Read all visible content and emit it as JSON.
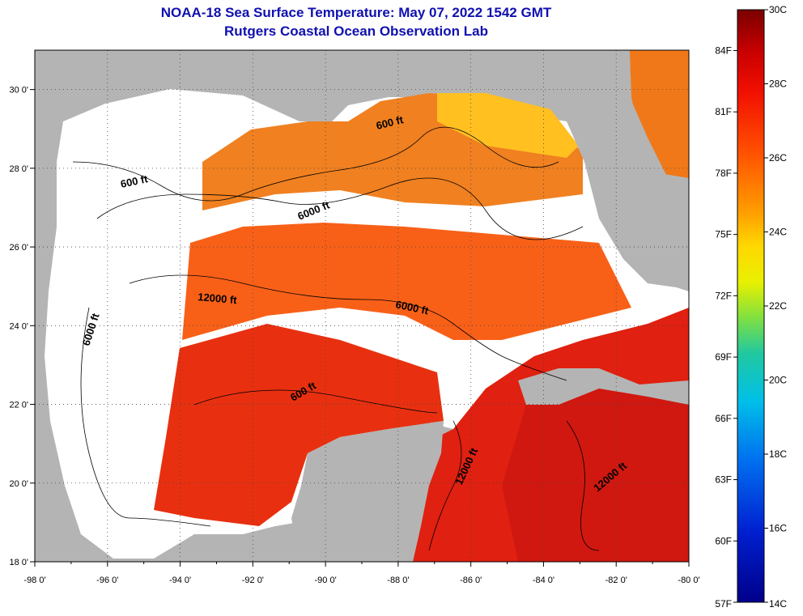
{
  "title": {
    "line1": "NOAA-18 Sea Surface Temperature:  May 07, 2022 1542 GMT",
    "line2": "Rutgers Coastal Ocean Observation Lab"
  },
  "map": {
    "lon_ticks": [
      "-98 0'",
      "-96 0'",
      "-94 0'",
      "-92 0'",
      "-90 0'",
      "-88 0'",
      "-86 0'",
      "-84 0'",
      "-82 0'",
      "-80 0'"
    ],
    "lat_ticks": [
      "30 0'",
      "28 0'",
      "26 0'",
      "24 0'",
      "22 0'",
      "20 0'",
      "18 0'"
    ],
    "lon_range": [
      -98,
      -80
    ],
    "lat_range": [
      18,
      31
    ],
    "contour_labels": [
      "600 ft",
      "600 ft",
      "6000 ft",
      "12000 ft",
      "6000 ft",
      "6000 ft",
      "600 ft",
      "12000 ft",
      "12000 ft"
    ],
    "colors": {
      "land": "#b4b4b4",
      "cloud": "#ffffff",
      "sst_warm": "#e02010",
      "sst_mid": "#f07818"
    }
  },
  "colorbar": {
    "celsius_labels": [
      "30C",
      "28C",
      "26C",
      "24C",
      "22C",
      "20C",
      "18C",
      "16C",
      "14C"
    ],
    "fahrenheit_labels": [
      "84F",
      "81F",
      "78F",
      "75F",
      "72F",
      "69F",
      "66F",
      "63F",
      "60F",
      "57F"
    ],
    "range_c": [
      14,
      30
    ],
    "range_f": [
      57,
      86
    ]
  }
}
